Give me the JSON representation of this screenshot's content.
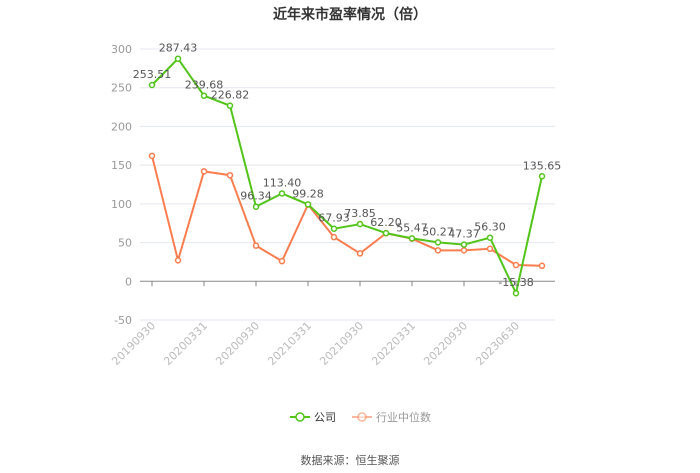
{
  "chart_data": {
    "type": "line",
    "title": "近年来市盈率情况（倍）",
    "categories": [
      "20190930",
      "",
      "20200331",
      "",
      "20200930",
      "",
      "20210331",
      "",
      "20210930",
      "",
      "20220331",
      "",
      "20220930",
      "",
      "20230630",
      ""
    ],
    "ylim": [
      -50,
      300
    ],
    "yticks": [
      -50,
      0,
      50,
      100,
      150,
      200,
      250,
      300
    ],
    "grid": true,
    "legend_position": "bottom",
    "series": [
      {
        "name": "公司",
        "color": "#52c41a",
        "labels": true,
        "values": [
          253.51,
          287.43,
          239.68,
          226.82,
          96.34,
          113.4,
          99.28,
          67.93,
          73.85,
          62.2,
          55.47,
          50.27,
          47.37,
          56.3,
          -15.38,
          135.65
        ]
      },
      {
        "name": "行业中位数",
        "color": "#fa7d4f",
        "labels": false,
        "values": [
          162,
          27,
          142,
          137,
          46,
          26,
          99,
          57,
          36,
          62,
          55,
          40,
          40,
          42,
          21,
          20
        ]
      }
    ]
  },
  "source": "数据来源：恒生聚源"
}
